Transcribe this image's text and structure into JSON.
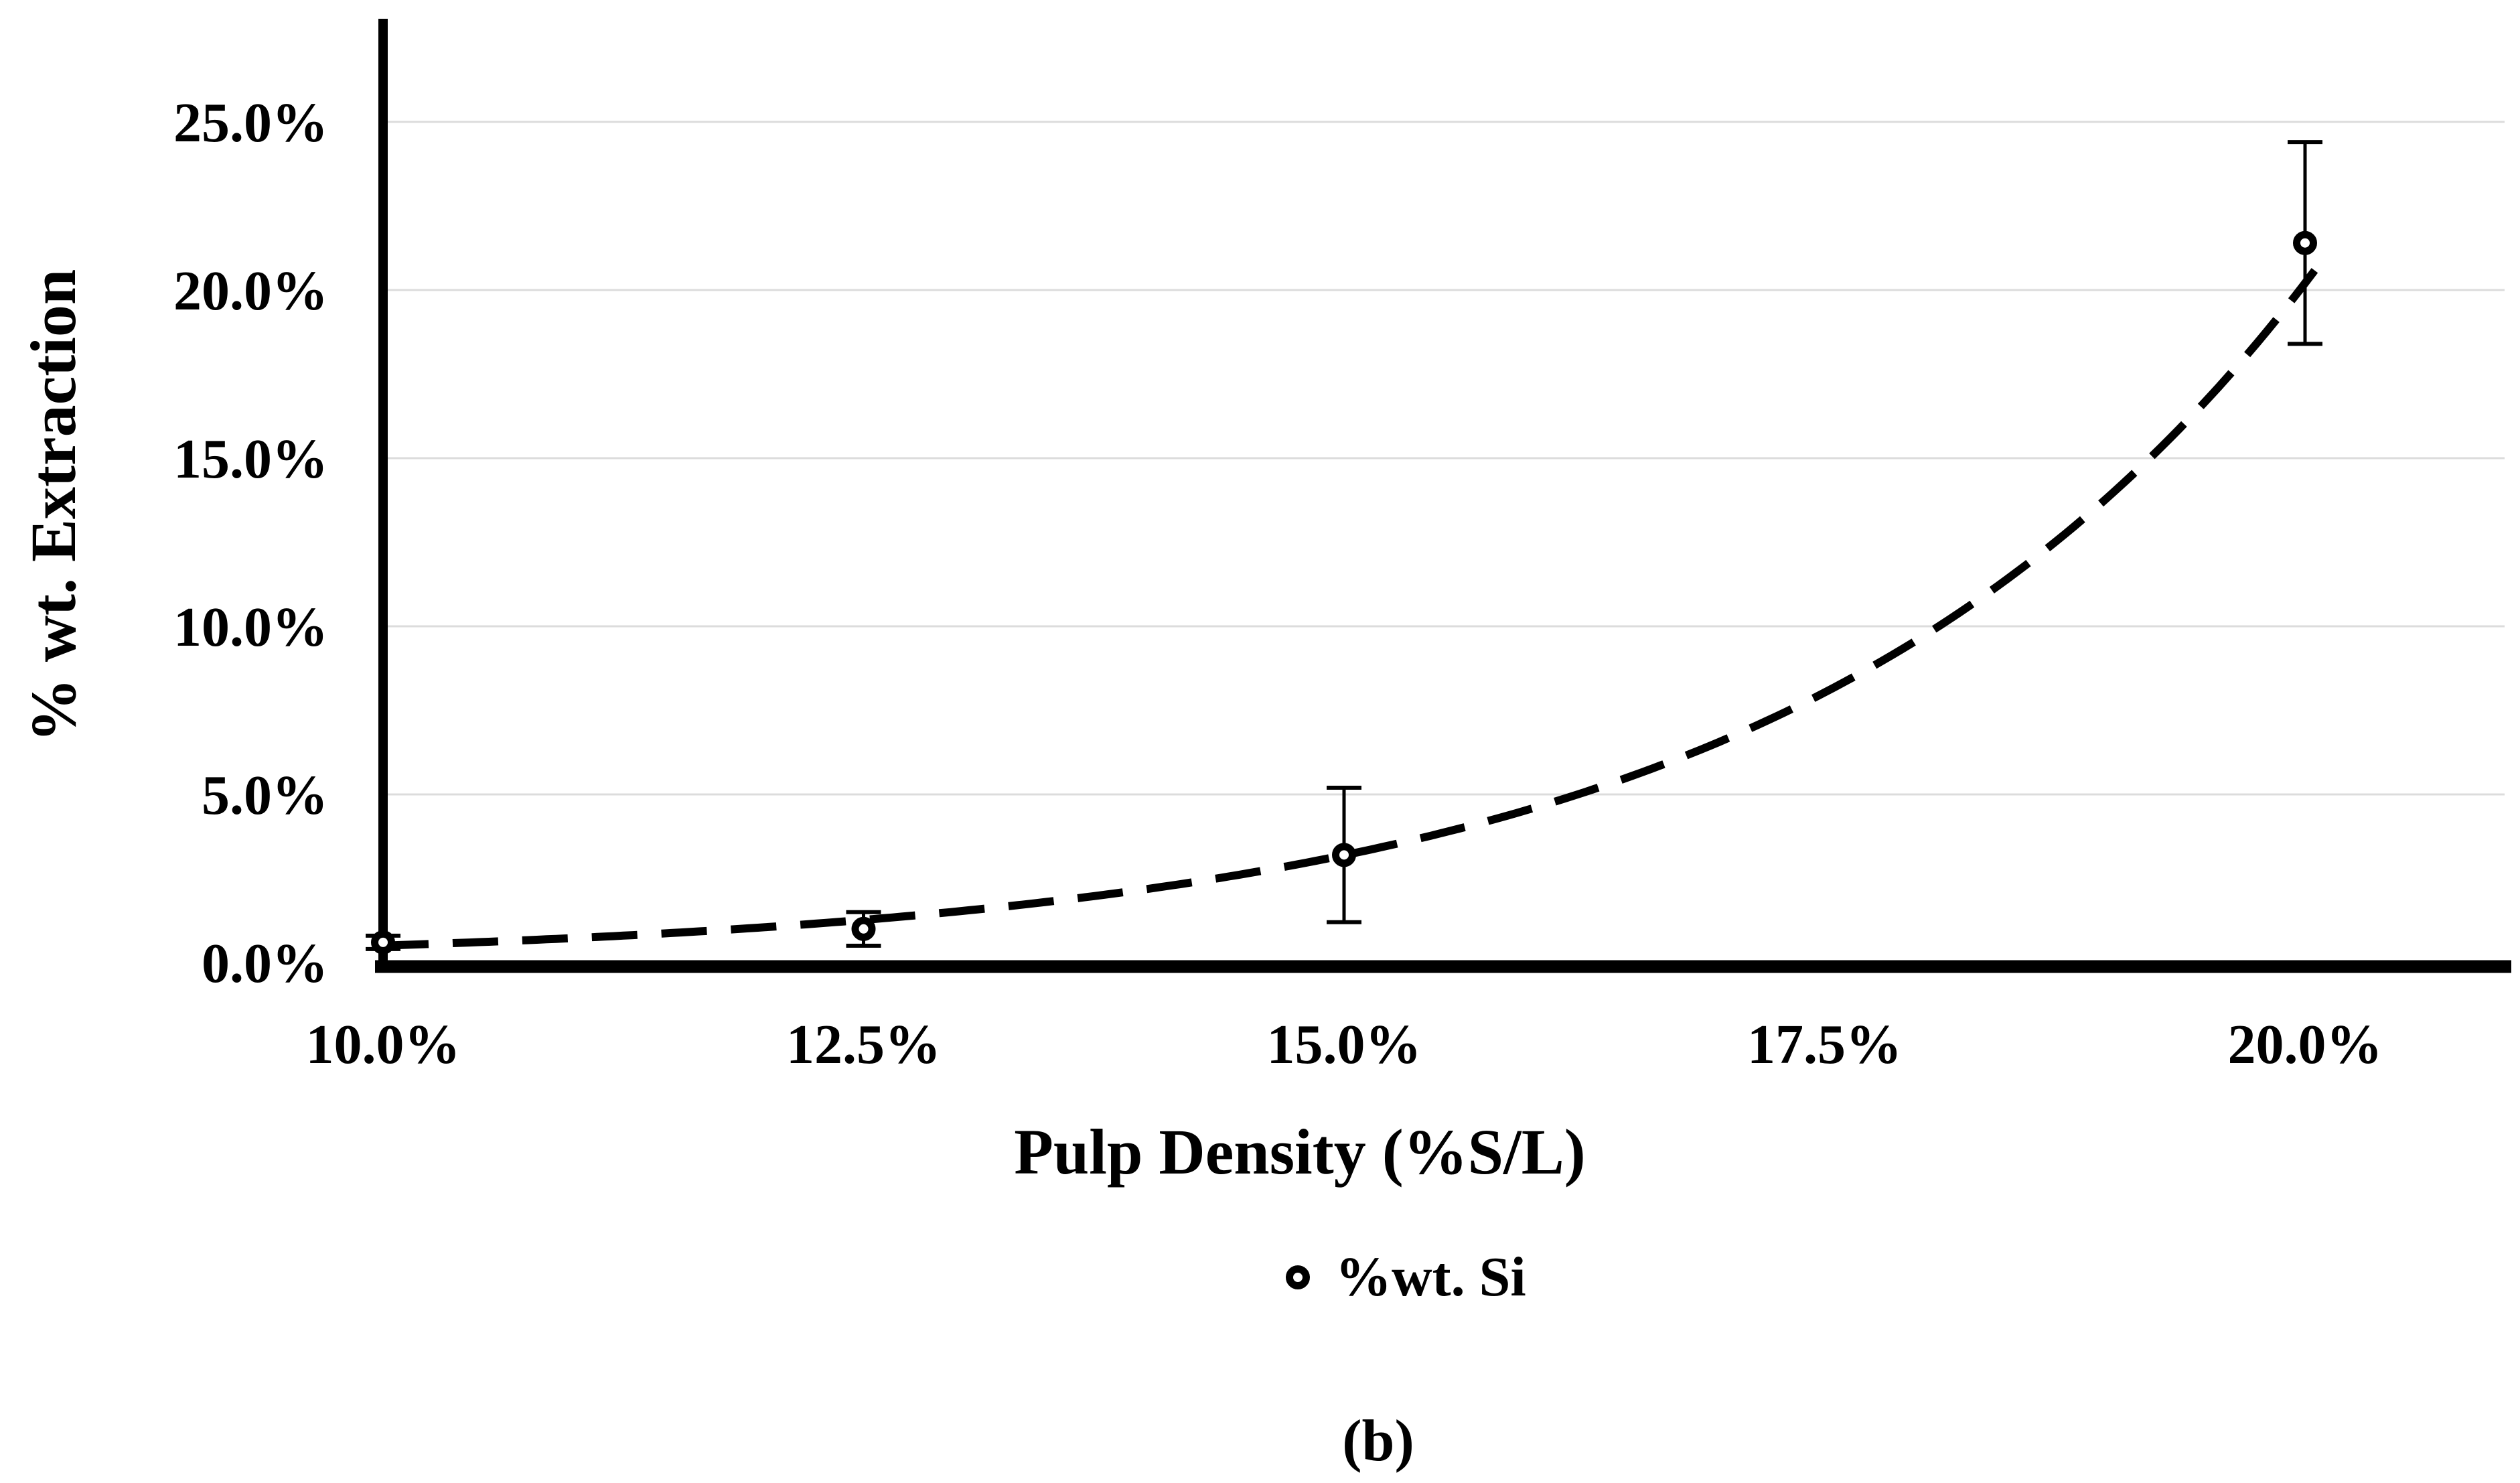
{
  "figure": {
    "caption": "(b)"
  },
  "chart_data": {
    "type": "scatter",
    "title": "",
    "xlabel": "Pulp Density (%S/L)",
    "ylabel": "% wt. Extraction",
    "x_ticks": [
      10.0,
      12.5,
      15.0,
      17.5,
      20.0
    ],
    "x_tick_labels": [
      "10.0%",
      "12.5%",
      "15.0%",
      "17.5%",
      "20.0%"
    ],
    "y_ticks": [
      0,
      5,
      10,
      15,
      20,
      25
    ],
    "y_tick_labels": [
      "0.0%",
      "5.0%",
      "10.0%",
      "15.0%",
      "20.0%",
      "25.0%"
    ],
    "xlim": [
      10,
      21.1
    ],
    "ylim": [
      0,
      28.1
    ],
    "grid": "horizontal",
    "legend_position": "bottom-center",
    "series": [
      {
        "name": "%wt. Si",
        "marker": "open-circle",
        "color": "#000000",
        "x": [
          10.0,
          12.5,
          15.0,
          20.0
        ],
        "y": [
          0.6,
          1.0,
          3.2,
          21.4
        ],
        "y_err": [
          0.2,
          0.5,
          2.0,
          3.0
        ]
      }
    ],
    "trendline": {
      "style": "dashed",
      "fit": "exponential",
      "equation": "y = 0.0126·e^(0.369·x)",
      "a": 0.0126,
      "b": 0.369,
      "x_start": 10.0,
      "x_end": 20.07
    },
    "colors": {
      "ink": "#000000",
      "gridline": "#dcdcdc",
      "background": "#ffffff"
    }
  }
}
